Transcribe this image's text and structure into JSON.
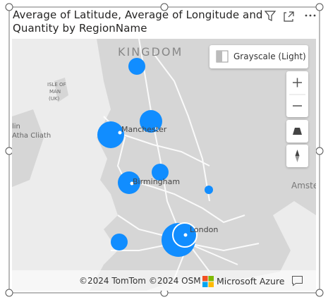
{
  "header": {
    "title_line1": "Average of Latitude, Average of Longitude and",
    "title_line2": "Quantity by RegionName"
  },
  "map": {
    "labels": {
      "kingdom": "KINGDOM",
      "isle1": "ISLE OF",
      "isle2": "MAN",
      "isle3": "(UK)",
      "dublin_part": "lin",
      "dublin": "Atha Cliath",
      "manchester": "Manchester",
      "birmingham": "Birmingham",
      "london": "London",
      "amsterdam": "Amste"
    },
    "style_button": "Grayscale (Light)",
    "attribution": {
      "tomtom": "©2024 TomTom",
      "osm": "©2024 OSM",
      "azure": "Microsoft Azure"
    }
  }
}
